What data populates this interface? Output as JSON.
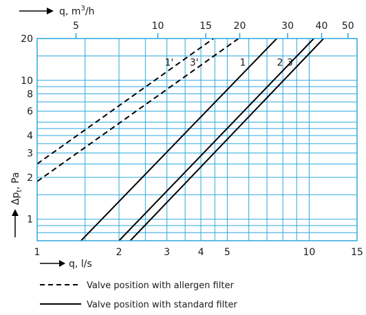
{
  "chart_data": {
    "type": "line",
    "scale": "log-log",
    "grid": true,
    "colors": {
      "grid": "#2aa7de",
      "series": "#000000",
      "frame": "#2aa7de"
    },
    "x_axis": {
      "label": "q, l/s",
      "unit": "l/s",
      "range": [
        1,
        15
      ],
      "ticks": [
        1,
        2,
        3,
        4,
        5,
        10,
        15
      ],
      "tick_labels": [
        "1",
        "2",
        "3",
        "4",
        "5",
        "10",
        "15"
      ],
      "grid_lines": [
        1,
        1.5,
        2,
        2.5,
        3,
        3.5,
        4,
        4.5,
        5,
        6,
        7,
        8,
        9,
        10,
        15
      ]
    },
    "x2_axis": {
      "label": "q, m³/h",
      "unit": "m³/h",
      "ticks": [
        5,
        10,
        15,
        20,
        30,
        40,
        50
      ],
      "tick_labels": [
        "5",
        "10",
        "15",
        "20",
        "30",
        "40",
        "50"
      ]
    },
    "y_axis": {
      "label": "Δpt, Pa",
      "unit": "Pa",
      "range": [
        0.7,
        20
      ],
      "ticks": [
        1,
        2,
        3,
        4,
        6,
        8,
        10,
        20
      ],
      "tick_labels": [
        "1",
        "2",
        "3",
        "4",
        "6",
        "8",
        "10",
        "20"
      ],
      "grid_lines": [
        0.8,
        0.9,
        1,
        1.5,
        2,
        2.5,
        3,
        3.5,
        4,
        4.5,
        5,
        6,
        7,
        8,
        9,
        10,
        15,
        20
      ]
    },
    "series": [
      {
        "name": "1'",
        "style": "dashed",
        "x": [
          1,
          4.45
        ],
        "y": [
          2.5,
          20
        ]
      },
      {
        "name": "3'",
        "style": "dashed",
        "x": [
          1,
          5.5
        ],
        "y": [
          1.87,
          20
        ]
      },
      {
        "name": "1",
        "style": "solid",
        "x": [
          1.45,
          7.6
        ],
        "y": [
          0.7,
          20
        ]
      },
      {
        "name": "2",
        "style": "solid",
        "x": [
          2,
          10.4
        ],
        "y": [
          0.7,
          20
        ]
      },
      {
        "name": "3",
        "style": "solid",
        "x": [
          2.2,
          11.3
        ],
        "y": [
          0.7,
          20
        ]
      }
    ],
    "legend": [
      {
        "style": "dashed",
        "text": "Valve position with allergen filter"
      },
      {
        "style": "solid",
        "text": "Valve position with standard filter"
      }
    ]
  }
}
